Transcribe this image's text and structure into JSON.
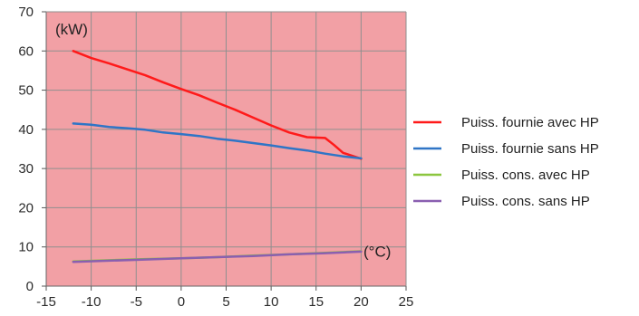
{
  "chart_data": {
    "type": "line",
    "title": "",
    "y_unit_label": "(kW)",
    "x_unit_label": "(°C)",
    "xlim": [
      -15,
      25
    ],
    "ylim": [
      0,
      70
    ],
    "x_ticks": [
      -15,
      -10,
      -5,
      0,
      5,
      10,
      15,
      20,
      25
    ],
    "y_ticks": [
      0,
      10,
      20,
      30,
      40,
      50,
      60,
      70
    ],
    "grid": true,
    "plot_background": "#f2a0a5",
    "legend_position": "right",
    "series": [
      {
        "name": "Puiss. fournie avec HP",
        "color": "#ff1a1a",
        "x": [
          -12,
          -10,
          -8,
          -6,
          -4,
          -2,
          0,
          2,
          4,
          6,
          8,
          10,
          12,
          14,
          16,
          17,
          18,
          20
        ],
        "y": [
          60,
          58.2,
          56.8,
          55.3,
          53.8,
          52,
          50.3,
          48.7,
          46.8,
          45,
          43,
          41,
          39.2,
          38,
          37.8,
          36,
          34,
          32.5
        ]
      },
      {
        "name": "Puiss. fournie sans HP",
        "color": "#2f75c6",
        "x": [
          -12,
          -10,
          -8,
          -6,
          -4,
          -2,
          0,
          2,
          4,
          6,
          8,
          10,
          12,
          14,
          16,
          18,
          20
        ],
        "y": [
          41.5,
          41.2,
          40.6,
          40.3,
          39.9,
          39.2,
          38.8,
          38.3,
          37.6,
          37.1,
          36.5,
          35.9,
          35.2,
          34.6,
          33.8,
          33.1,
          32.6
        ]
      },
      {
        "name": "Puiss. cons. avec HP",
        "color": "#8cc63f",
        "x": [
          -12,
          -8,
          -4,
          0,
          4,
          8,
          12,
          16,
          20
        ],
        "y": [
          6.3,
          6.6,
          6.9,
          7.1,
          7.4,
          7.8,
          8.1,
          8.5,
          8.9
        ]
      },
      {
        "name": "Puiss. cons. sans HP",
        "color": "#8a5fb0",
        "x": [
          -12,
          -8,
          -4,
          0,
          4,
          8,
          12,
          16,
          20
        ],
        "y": [
          6.2,
          6.5,
          6.8,
          7.1,
          7.4,
          7.7,
          8.1,
          8.4,
          8.8
        ]
      }
    ]
  }
}
